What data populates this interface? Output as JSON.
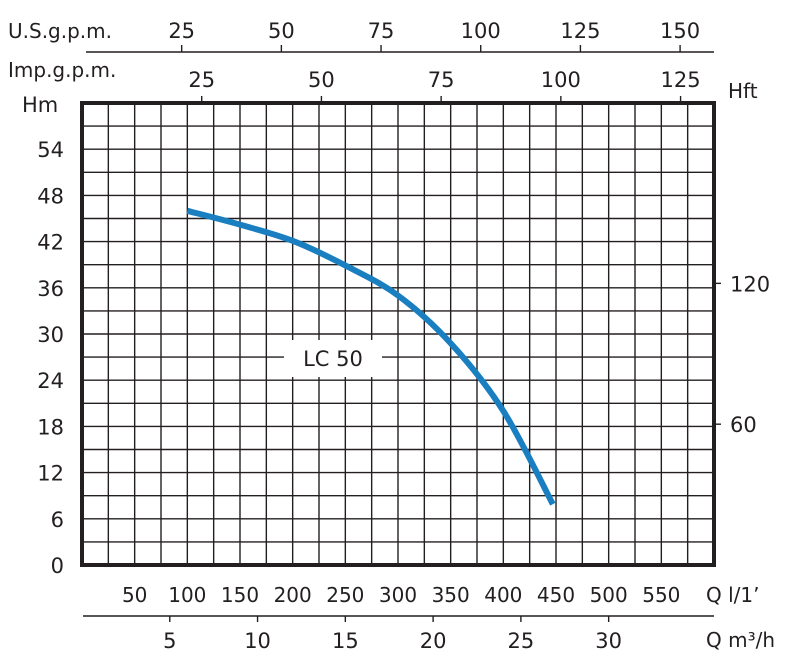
{
  "chart_data": {
    "type": "line",
    "title": "",
    "series": [
      {
        "name": "LC 50",
        "color": "#1a7fc1",
        "x_lpm": [
          100,
          150,
          200,
          250,
          300,
          350,
          400,
          447
        ],
        "y_hm": [
          46.0,
          44.2,
          42.1,
          38.9,
          35.0,
          28.8,
          20.0,
          7.9
        ]
      }
    ],
    "curve_label": "LC 50",
    "xlabel": "Q l/1’",
    "ylabel": "Hm",
    "xlim": [
      0,
      600
    ],
    "ylim": [
      0,
      60
    ],
    "grid": true,
    "axes": {
      "left": {
        "label": "Hm",
        "ticks": [
          0,
          6,
          12,
          18,
          24,
          30,
          36,
          42,
          48,
          54
        ]
      },
      "right": {
        "label": "Hft",
        "ticks": [
          60,
          120
        ]
      },
      "bottom_lpm": {
        "label": "Q l/1’",
        "ticks": [
          50,
          100,
          150,
          200,
          250,
          300,
          350,
          400,
          450,
          500,
          550
        ]
      },
      "bottom_m3h": {
        "label": "Q m³/h",
        "ticks": [
          5,
          10,
          15,
          20,
          25,
          30
        ]
      },
      "top_usgpm": {
        "label": "U.S.g.p.m.",
        "ticks": [
          25,
          50,
          75,
          100,
          125,
          150
        ]
      },
      "top_impgpm": {
        "label": "Imp.g.p.m.",
        "ticks": [
          25,
          50,
          75,
          100,
          125
        ]
      }
    }
  }
}
